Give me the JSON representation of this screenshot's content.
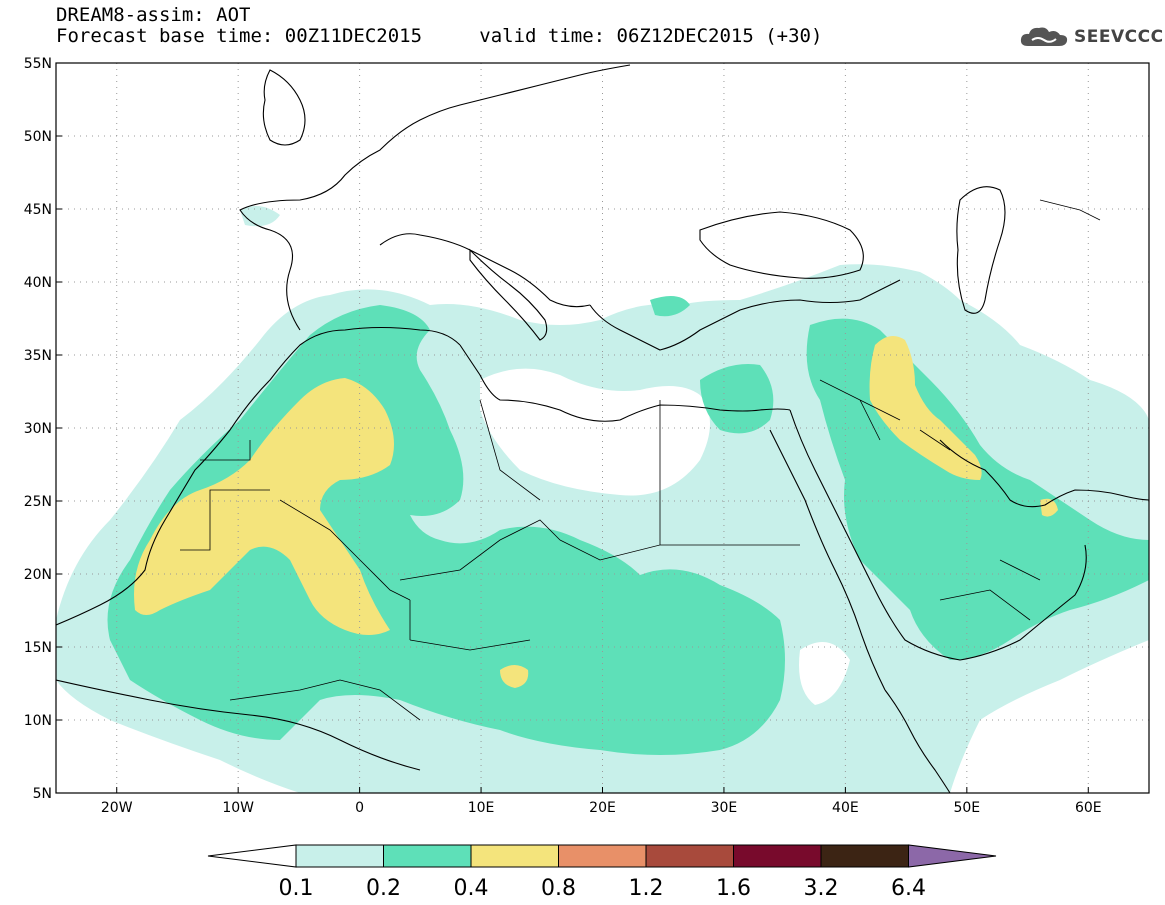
{
  "header": {
    "title": "DREAM8-assim: AOT",
    "forecast_base": "Forecast base time: 00Z11DEC2015",
    "valid_time": "valid time: 06Z12DEC2015 (+30)"
  },
  "logo": {
    "text": "SEEVCCC",
    "icon": "cloud-icon"
  },
  "map": {
    "lat_labels": [
      "55N",
      "50N",
      "45N",
      "40N",
      "35N",
      "30N",
      "25N",
      "20N",
      "15N",
      "10N",
      "5N"
    ],
    "lon_labels": [
      "20W",
      "10W",
      "0",
      "10E",
      "20E",
      "30E",
      "40E",
      "50E",
      "60E"
    ],
    "lon_range": [
      -25,
      65
    ],
    "lat_range": [
      5,
      55
    ]
  },
  "colorbar": {
    "labels": [
      "0.1",
      "0.2",
      "0.4",
      "0.8",
      "1.2",
      "1.6",
      "3.2",
      "6.4"
    ],
    "colors": [
      "#ffffff",
      "#c8f0ea",
      "#5ee0b8",
      "#f4e47c",
      "#e89068",
      "#a84a3c",
      "#780a2c",
      "#3c2414",
      "#8c68a8"
    ]
  },
  "colors": {
    "low": "#c8f0ea",
    "mid": "#5ee0b8",
    "high": "#f4e47c",
    "border": "#000000",
    "grid": "#999999"
  }
}
